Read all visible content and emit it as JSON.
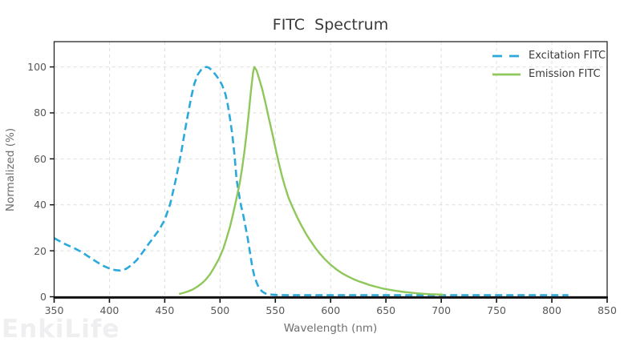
{
  "watermark": {
    "text": "EnkiLife",
    "color": "#EFEEF0"
  },
  "chart_data": {
    "type": "line",
    "title": "FITC  Spectrum",
    "xlabel": "Wavelength (nm)",
    "ylabel": "Normalized (%)",
    "xlim": [
      350,
      850
    ],
    "ylim": [
      0,
      111
    ],
    "x_ticks": [
      350,
      400,
      450,
      500,
      550,
      600,
      650,
      700,
      750,
      800,
      850
    ],
    "y_ticks": [
      0,
      20,
      40,
      60,
      80,
      100
    ],
    "grid": {
      "show": true,
      "style": "dashed",
      "color": "#DEDEDE"
    },
    "legend": {
      "position": "top-right",
      "frame": false
    },
    "axis": {
      "spine_color": "#262626",
      "tick_label_color": "#585858",
      "axis_label_color": "#6E6E6E",
      "title_color": "#3A3A3A"
    },
    "series": [
      {
        "name": "Excitation FITC",
        "color": "#2BA9DB",
        "style": "dashed",
        "points": [
          [
            350,
            25.5
          ],
          [
            355,
            24.2
          ],
          [
            360,
            22.9
          ],
          [
            365,
            21.8
          ],
          [
            370,
            20.7
          ],
          [
            375,
            19.4
          ],
          [
            380,
            17.8
          ],
          [
            385,
            16.2
          ],
          [
            390,
            14.7
          ],
          [
            395,
            13.3
          ],
          [
            400,
            12.3
          ],
          [
            405,
            11.6
          ],
          [
            410,
            11.4
          ],
          [
            415,
            12.1
          ],
          [
            420,
            13.8
          ],
          [
            425,
            16.1
          ],
          [
            430,
            19.3
          ],
          [
            435,
            22.7
          ],
          [
            440,
            25.9
          ],
          [
            445,
            29.2
          ],
          [
            450,
            33.5
          ],
          [
            455,
            40.5
          ],
          [
            460,
            51
          ],
          [
            465,
            63
          ],
          [
            468,
            71.5
          ],
          [
            471,
            79.5
          ],
          [
            474,
            87
          ],
          [
            477,
            93
          ],
          [
            480,
            96.8
          ],
          [
            483,
            98.8
          ],
          [
            486,
            99.8
          ],
          [
            488,
            100
          ],
          [
            490,
            99.6
          ],
          [
            493,
            98.4
          ],
          [
            496,
            96.6
          ],
          [
            499,
            94.6
          ],
          [
            502,
            92
          ],
          [
            505,
            88
          ],
          [
            507,
            83.5
          ],
          [
            509,
            77.5
          ],
          [
            511,
            71
          ],
          [
            513,
            62
          ],
          [
            515,
            51
          ],
          [
            517,
            45
          ],
          [
            519,
            39.5
          ],
          [
            521,
            35.5
          ],
          [
            523,
            30.5
          ],
          [
            525,
            25.5
          ],
          [
            527,
            19.5
          ],
          [
            529,
            13.5
          ],
          [
            531,
            9
          ],
          [
            533,
            6.2
          ],
          [
            535,
            4
          ],
          [
            538,
            2.3
          ],
          [
            541,
            1.4
          ],
          [
            545,
            1
          ],
          [
            550,
            0.8
          ],
          [
            560,
            0.7
          ],
          [
            580,
            0.7
          ],
          [
            600,
            0.7
          ],
          [
            620,
            0.7
          ],
          [
            640,
            0.7
          ],
          [
            660,
            0.7
          ],
          [
            680,
            0.7
          ],
          [
            700,
            0.7
          ],
          [
            720,
            0.7
          ],
          [
            740,
            0.7
          ],
          [
            760,
            0.7
          ],
          [
            780,
            0.7
          ],
          [
            800,
            0.7
          ],
          [
            815,
            0.7
          ]
        ]
      },
      {
        "name": "Emission FITC",
        "color": "#8FC75B",
        "style": "solid",
        "points": [
          [
            463,
            1.2
          ],
          [
            467,
            1.7
          ],
          [
            471,
            2.3
          ],
          [
            475,
            3.1
          ],
          [
            479,
            4.2
          ],
          [
            483,
            5.6
          ],
          [
            487,
            7.4
          ],
          [
            491,
            9.8
          ],
          [
            495,
            13
          ],
          [
            499,
            16.5
          ],
          [
            503,
            21
          ],
          [
            506,
            25.5
          ],
          [
            509,
            30.5
          ],
          [
            512,
            36.5
          ],
          [
            515,
            43
          ],
          [
            518,
            50
          ],
          [
            520,
            56
          ],
          [
            522,
            63
          ],
          [
            524,
            71
          ],
          [
            526,
            80
          ],
          [
            528,
            90
          ],
          [
            530,
            98
          ],
          [
            531,
            100
          ],
          [
            533,
            98.5
          ],
          [
            535,
            95.5
          ],
          [
            538,
            90.5
          ],
          [
            541,
            84.5
          ],
          [
            544,
            78
          ],
          [
            547,
            71.5
          ],
          [
            550,
            65
          ],
          [
            553,
            58.5
          ],
          [
            556,
            52.5
          ],
          [
            559,
            47.5
          ],
          [
            562,
            43
          ],
          [
            566,
            38.5
          ],
          [
            570,
            34.3
          ],
          [
            574,
            30.6
          ],
          [
            578,
            27.2
          ],
          [
            582,
            24.2
          ],
          [
            586,
            21.4
          ],
          [
            590,
            18.9
          ],
          [
            595,
            16.2
          ],
          [
            600,
            13.9
          ],
          [
            605,
            12
          ],
          [
            610,
            10.3
          ],
          [
            615,
            9
          ],
          [
            620,
            7.8
          ],
          [
            625,
            6.8
          ],
          [
            630,
            6
          ],
          [
            636,
            5
          ],
          [
            642,
            4.2
          ],
          [
            648,
            3.5
          ],
          [
            654,
            3
          ],
          [
            660,
            2.5
          ],
          [
            666,
            2.1
          ],
          [
            672,
            1.8
          ],
          [
            678,
            1.5
          ],
          [
            684,
            1.3
          ],
          [
            690,
            1.1
          ],
          [
            696,
            1
          ],
          [
            702,
            0.9
          ]
        ]
      }
    ]
  }
}
